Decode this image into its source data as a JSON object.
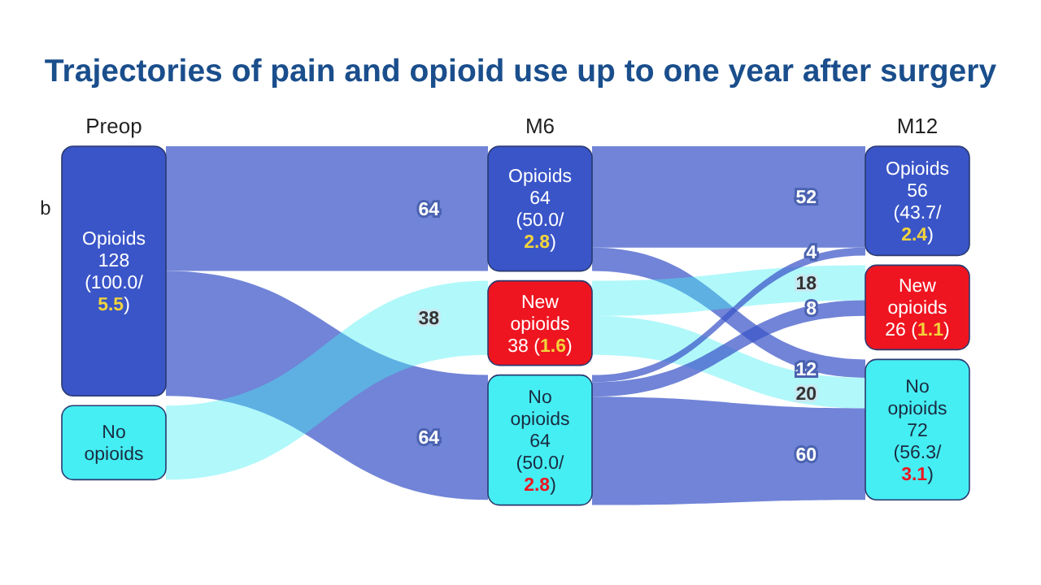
{
  "chart_data": {
    "type": "other",
    "title": "Trajectories of pain and opioid use up to one year after surgery",
    "annotations": [
      "b"
    ],
    "categories": [
      "Opioids",
      "New opioids",
      "No opioids"
    ],
    "series": [
      {
        "name": "Preop",
        "colors": [
          "#3a55c8",
          null,
          "#45eef2"
        ],
        "values": [
          128,
          null,
          null
        ],
        "value_labels": [
          "128 (100.0/ 5.5)",
          null,
          null
        ]
      },
      {
        "name": "M6",
        "colors": [
          "#3a55c8",
          "#ee1520",
          "#45eef2"
        ],
        "values": [
          64,
          38,
          64
        ],
        "value_labels": [
          "64 (50.0/ 2.8)",
          "38 (1.6)",
          "64 (50.0/ 2.8)"
        ]
      },
      {
        "name": "M12",
        "colors": [
          "#3a55c8",
          "#ee1520",
          "#45eef2"
        ],
        "values": [
          56,
          26,
          72
        ],
        "value_labels": [
          "56 (43.7/ 2.4)",
          "26 (1.1)",
          "72 (56.3/ 3.1)"
        ]
      }
    ],
    "cell_labels": [
      [
        "64",
        null,
        "64"
      ],
      [
        null,
        null,
        null
      ],
      [
        null,
        "38",
        null
      ],
      [
        "52",
        null,
        "12"
      ],
      [
        null,
        "18",
        "20"
      ],
      [
        "4",
        "8",
        "60"
      ]
    ]
  }
}
